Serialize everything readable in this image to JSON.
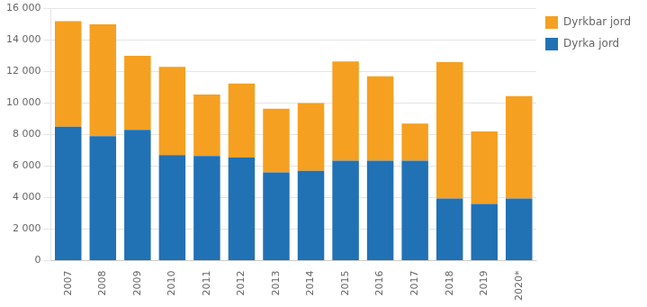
{
  "chart_data": {
    "type": "bar",
    "stacked": true,
    "categories": [
      "2007",
      "2008",
      "2009",
      "2010",
      "2011",
      "2012",
      "2013",
      "2014",
      "2015",
      "2016",
      "2017",
      "2018",
      "2019",
      "2020*"
    ],
    "series": [
      {
        "name": "Dyrka jord",
        "color": "#2171b5",
        "values": [
          8500,
          7900,
          8300,
          6700,
          6650,
          6550,
          5600,
          5700,
          6350,
          6350,
          6350,
          3950,
          3600,
          3950
        ]
      },
      {
        "name": "Dyrkbar jord",
        "color": "#f5a020",
        "values": [
          6700,
          7100,
          4700,
          5600,
          3900,
          4700,
          4050,
          4300,
          6300,
          5350,
          2350,
          8650,
          4600,
          6500
        ]
      }
    ],
    "ylim": [
      0,
      16000
    ],
    "yticks": [
      0,
      {
        "value": 2000,
        "label": "2 000"
      },
      {
        "value": 4000,
        "label": "4 000"
      },
      {
        "value": 6000,
        "label": "6 000"
      },
      {
        "value": 8000,
        "label": "8 000"
      },
      {
        "value": 10000,
        "label": "10 000"
      },
      {
        "value": 12000,
        "label": "12 000"
      },
      {
        "value": 14000,
        "label": "14 000"
      },
      {
        "value": 16000,
        "label": "16 000"
      }
    ],
    "grid": true,
    "legend": "upper right"
  }
}
